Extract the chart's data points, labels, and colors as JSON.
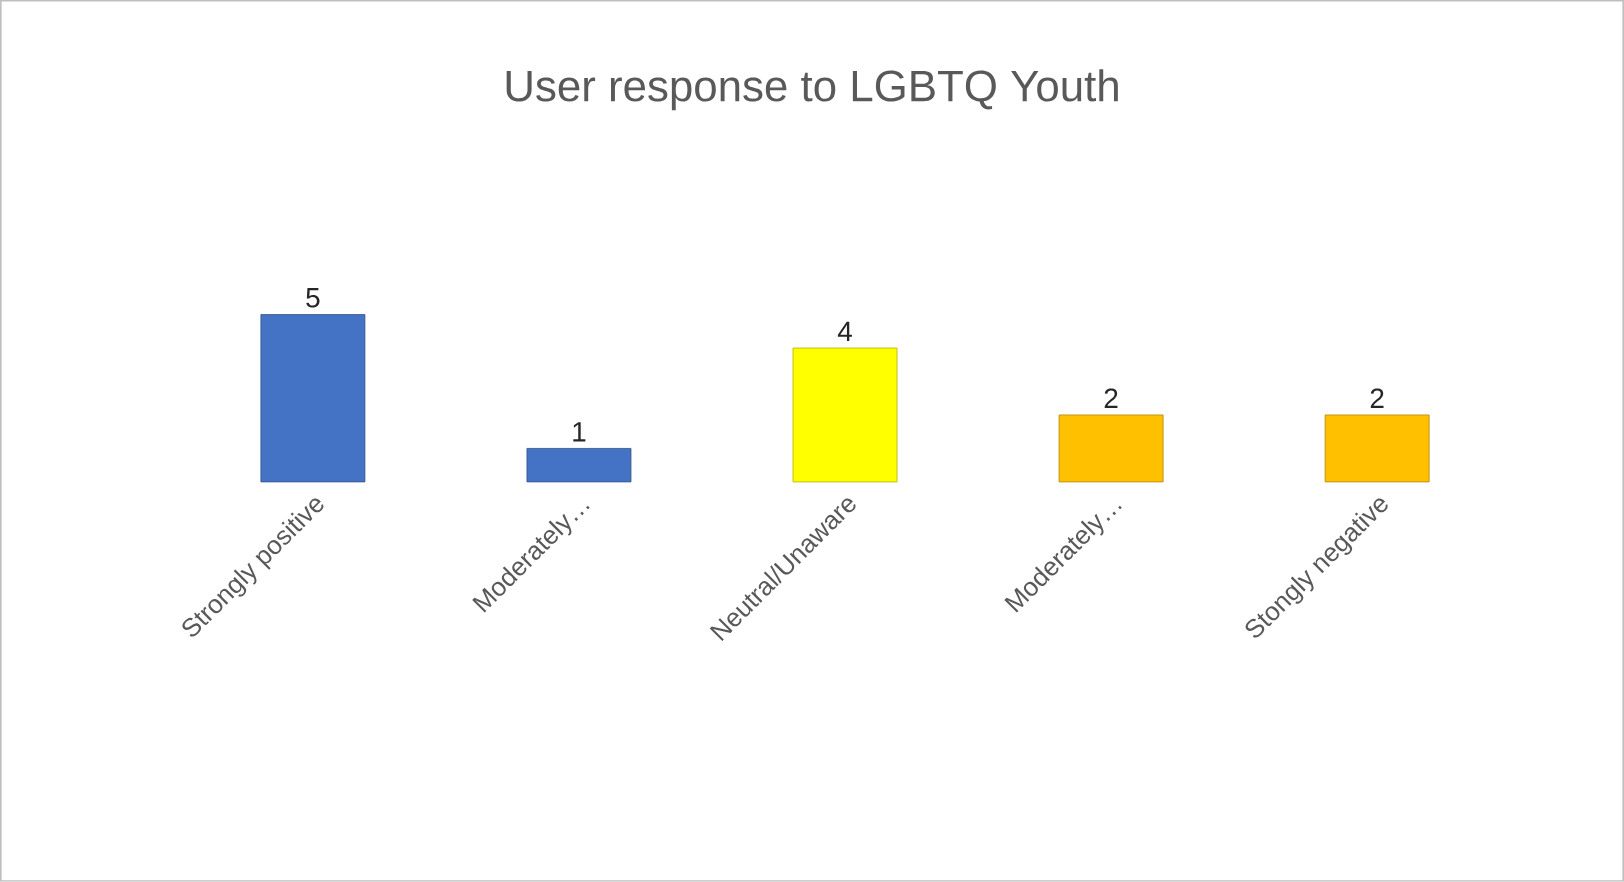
{
  "chart_data": {
    "type": "bar",
    "title": "User response to LGBTQ Youth",
    "categories": [
      "Strongly positive",
      "Moderately…",
      "Neutral/Unaware",
      "Moderately…",
      "Stongly negative"
    ],
    "values": [
      5,
      1,
      4,
      2,
      2
    ],
    "colors": [
      "#4472c4",
      "#4472c4",
      "#ffff00",
      "#ffc000",
      "#ffc000"
    ],
    "tick_labels": "x",
    "data_labels": true
  }
}
